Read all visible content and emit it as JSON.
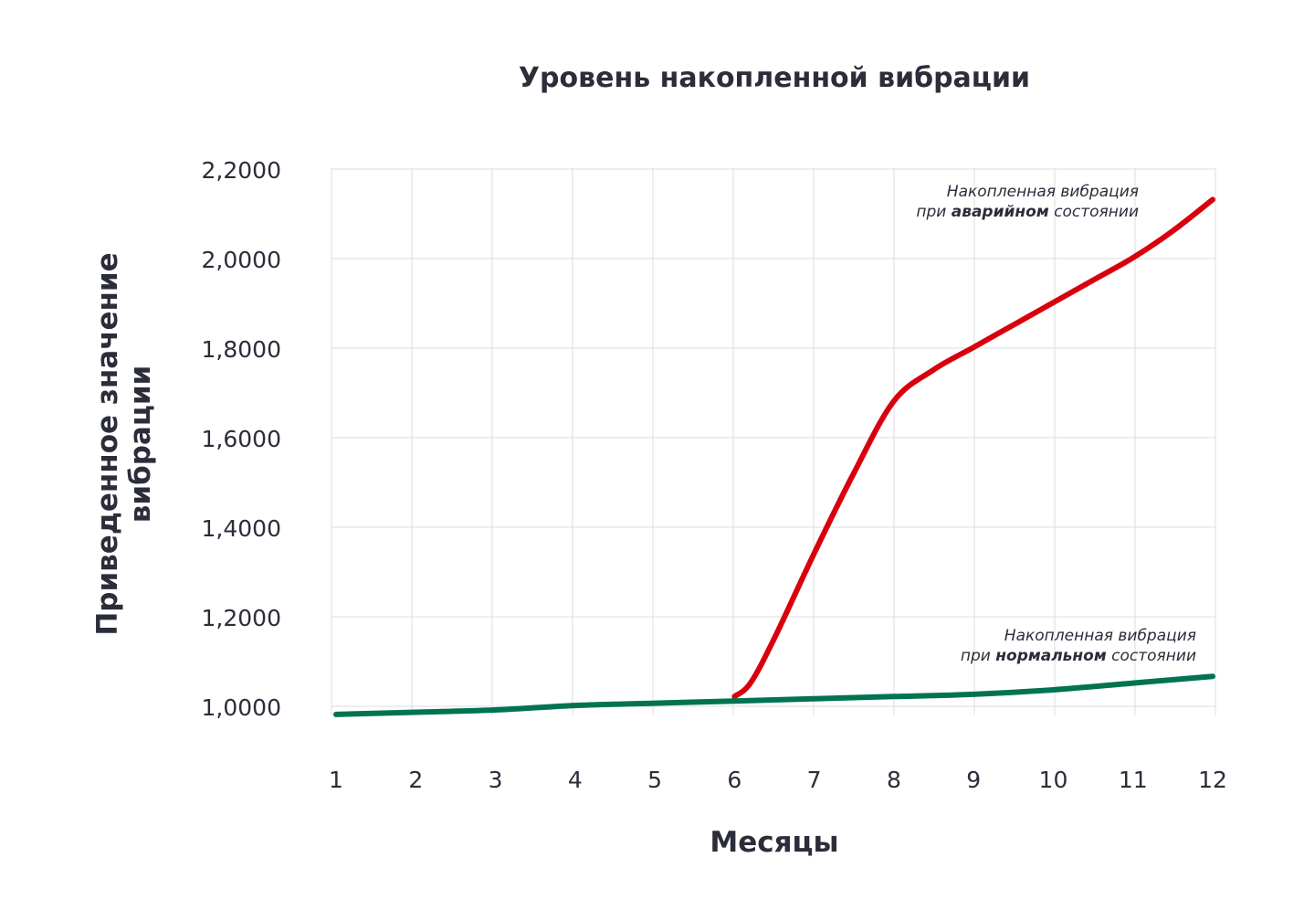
{
  "chart_data": {
    "type": "line",
    "title": "Уровень накопленной вибрации",
    "xlabel": "Месяцы",
    "ylabel_lines": [
      "Приведенное значение",
      "вибрации"
    ],
    "x": [
      1,
      2,
      3,
      4,
      5,
      6,
      7,
      8,
      9,
      10,
      11,
      12
    ],
    "x_tick_labels": [
      "1",
      "2",
      "3",
      "4",
      "5",
      "6",
      "7",
      "8",
      "9",
      "10",
      "11",
      "12"
    ],
    "y_ticks": [
      1.0,
      1.2,
      1.4,
      1.6,
      1.8,
      2.0,
      2.2
    ],
    "y_tick_labels": [
      "1,0000",
      "1,2000",
      "1,4000",
      "1,6000",
      "1,8000",
      "2,0000",
      "2,2000"
    ],
    "ylim": [
      1.0,
      2.2
    ],
    "xlim": [
      1,
      12
    ],
    "grid": true,
    "series": [
      {
        "key": "emergency",
        "color": "#d9000d",
        "x": [
          6,
          6.2,
          6.5,
          7,
          7.5,
          8,
          8.5,
          9,
          9.5,
          10,
          10.5,
          11,
          11.5,
          12
        ],
        "values": [
          1.03,
          1.06,
          1.16,
          1.35,
          1.53,
          1.69,
          1.76,
          1.81,
          1.86,
          1.91,
          1.96,
          2.01,
          2.07,
          2.14
        ]
      },
      {
        "key": "normal",
        "color": "#007352",
        "x": [
          1,
          2,
          3,
          4,
          5,
          6,
          7,
          8,
          9,
          10,
          11,
          12
        ],
        "values": [
          0.99,
          0.995,
          1.0,
          1.01,
          1.015,
          1.02,
          1.025,
          1.03,
          1.035,
          1.045,
          1.06,
          1.075
        ]
      }
    ],
    "annotations": [
      {
        "series": "emergency",
        "line1": "Накопленная вибрация",
        "line2_before": "при ",
        "line2_bold": "аварийном",
        "line2_after": " состоянии"
      },
      {
        "series": "normal",
        "line1": "Накопленная вибрация",
        "line2_before": "при ",
        "line2_bold": "нормальном",
        "line2_after": " состоянии"
      }
    ]
  }
}
